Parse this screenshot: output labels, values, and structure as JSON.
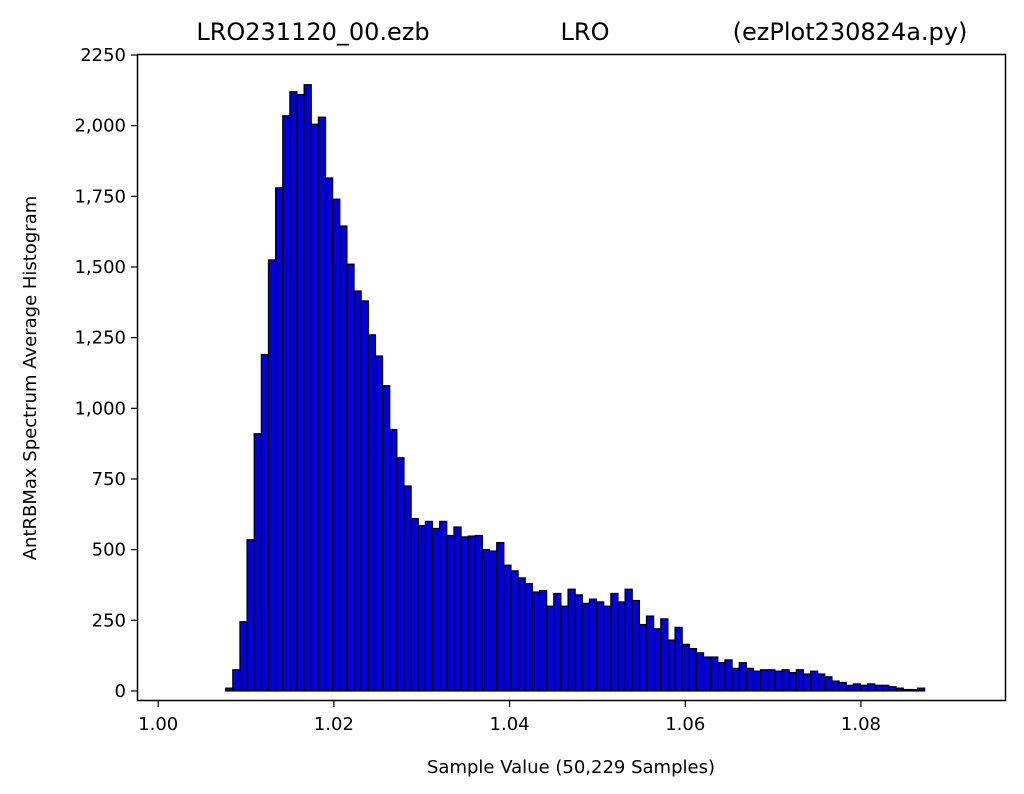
{
  "chart_data": {
    "type": "bar",
    "title_left": "LRO231120_00.ezb",
    "title_center": "LRO",
    "title_right": "(ezPlot230824a.py)",
    "xlabel": "Sample Value (50,229 Samples)",
    "ylabel": "AntRBMax Spectrum Average Histogram",
    "xlim": [
      0.9977,
      1.0964
    ],
    "ylim": [
      -32,
      2250
    ],
    "x_ticks": [
      1.0,
      1.02,
      1.04,
      1.06,
      1.08
    ],
    "x_tick_labels": [
      "1.00",
      "1.02",
      "1.04",
      "1.06",
      "1.08"
    ],
    "y_ticks": [
      0,
      250,
      500,
      750,
      1000,
      1250,
      1500,
      1750,
      2000,
      2250
    ],
    "y_tick_labels": [
      "0",
      "250",
      "500",
      "750",
      "1,000",
      "1,250",
      "1,500",
      "1,750",
      "2,000",
      "2250"
    ],
    "bin_start": 1.00768,
    "bin_width": 0.000812,
    "values": [
      10,
      75,
      245,
      535,
      910,
      1190,
      1525,
      1780,
      2035,
      2120,
      2110,
      2145,
      2005,
      2030,
      1815,
      1740,
      1645,
      1510,
      1415,
      1380,
      1260,
      1185,
      1080,
      925,
      825,
      725,
      610,
      585,
      600,
      575,
      600,
      550,
      580,
      545,
      548,
      550,
      500,
      495,
      525,
      445,
      425,
      400,
      380,
      350,
      355,
      300,
      345,
      300,
      360,
      340,
      310,
      325,
      315,
      300,
      345,
      315,
      360,
      320,
      235,
      265,
      220,
      255,
      180,
      225,
      165,
      150,
      135,
      120,
      120,
      100,
      110,
      80,
      100,
      80,
      70,
      75,
      75,
      70,
      75,
      65,
      75,
      60,
      70,
      60,
      50,
      35,
      30,
      20,
      25,
      20,
      25,
      20,
      20,
      15,
      10,
      5,
      5,
      10
    ],
    "bar_color": "#0000dd",
    "edge_color": "#000000",
    "grid": false
  }
}
